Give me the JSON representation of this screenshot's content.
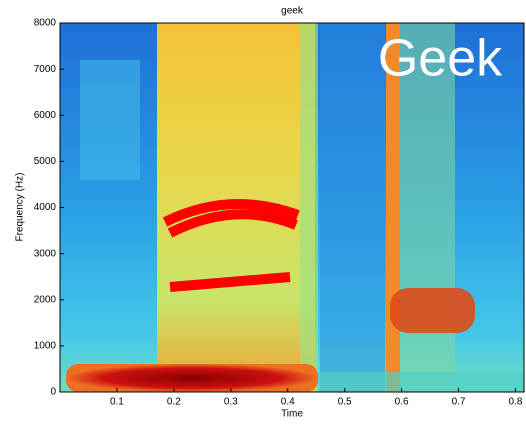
{
  "chart_data": {
    "type": "spectrogram",
    "title": "geek",
    "x_label": "Time",
    "y_label": "Frequency (Hz)",
    "annotation": "Geek",
    "xlim": [
      0,
      0.815
    ],
    "xticks": [
      0.1,
      0.2,
      0.3,
      0.4,
      0.5,
      0.6,
      0.7,
      0.8
    ],
    "ylim": [
      0,
      8000
    ],
    "yticks": [
      0,
      1000,
      2000,
      3000,
      4000,
      5000,
      6000,
      7000,
      8000
    ]
  }
}
